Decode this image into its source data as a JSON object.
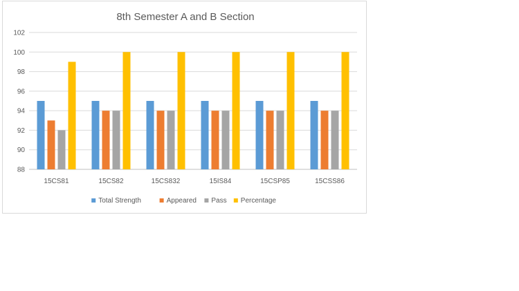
{
  "chart_data": {
    "type": "bar",
    "title": "8th Semester A and  B Section",
    "categories": [
      "15CS81",
      "15CS82",
      "15CS832",
      "15IS84",
      "15CSP85",
      "15CSS86"
    ],
    "series": [
      {
        "name": "Total Strength",
        "color": "#5b9bd5",
        "values": [
          95,
          95,
          95,
          95,
          95,
          95
        ]
      },
      {
        "name": "Appeared",
        "color": "#ed7d31",
        "values": [
          93,
          94,
          94,
          94,
          94,
          94
        ]
      },
      {
        "name": "Pass",
        "color": "#a5a5a5",
        "values": [
          92,
          94,
          94,
          94,
          94,
          94
        ]
      },
      {
        "name": "Percentage",
        "color": "#ffc000",
        "values": [
          99,
          100,
          100,
          100,
          100,
          100
        ]
      }
    ],
    "ylim": [
      88,
      102
    ],
    "yticks": [
      88,
      90,
      92,
      94,
      96,
      98,
      100,
      102
    ],
    "grid": true,
    "legend_position": "bottom"
  }
}
